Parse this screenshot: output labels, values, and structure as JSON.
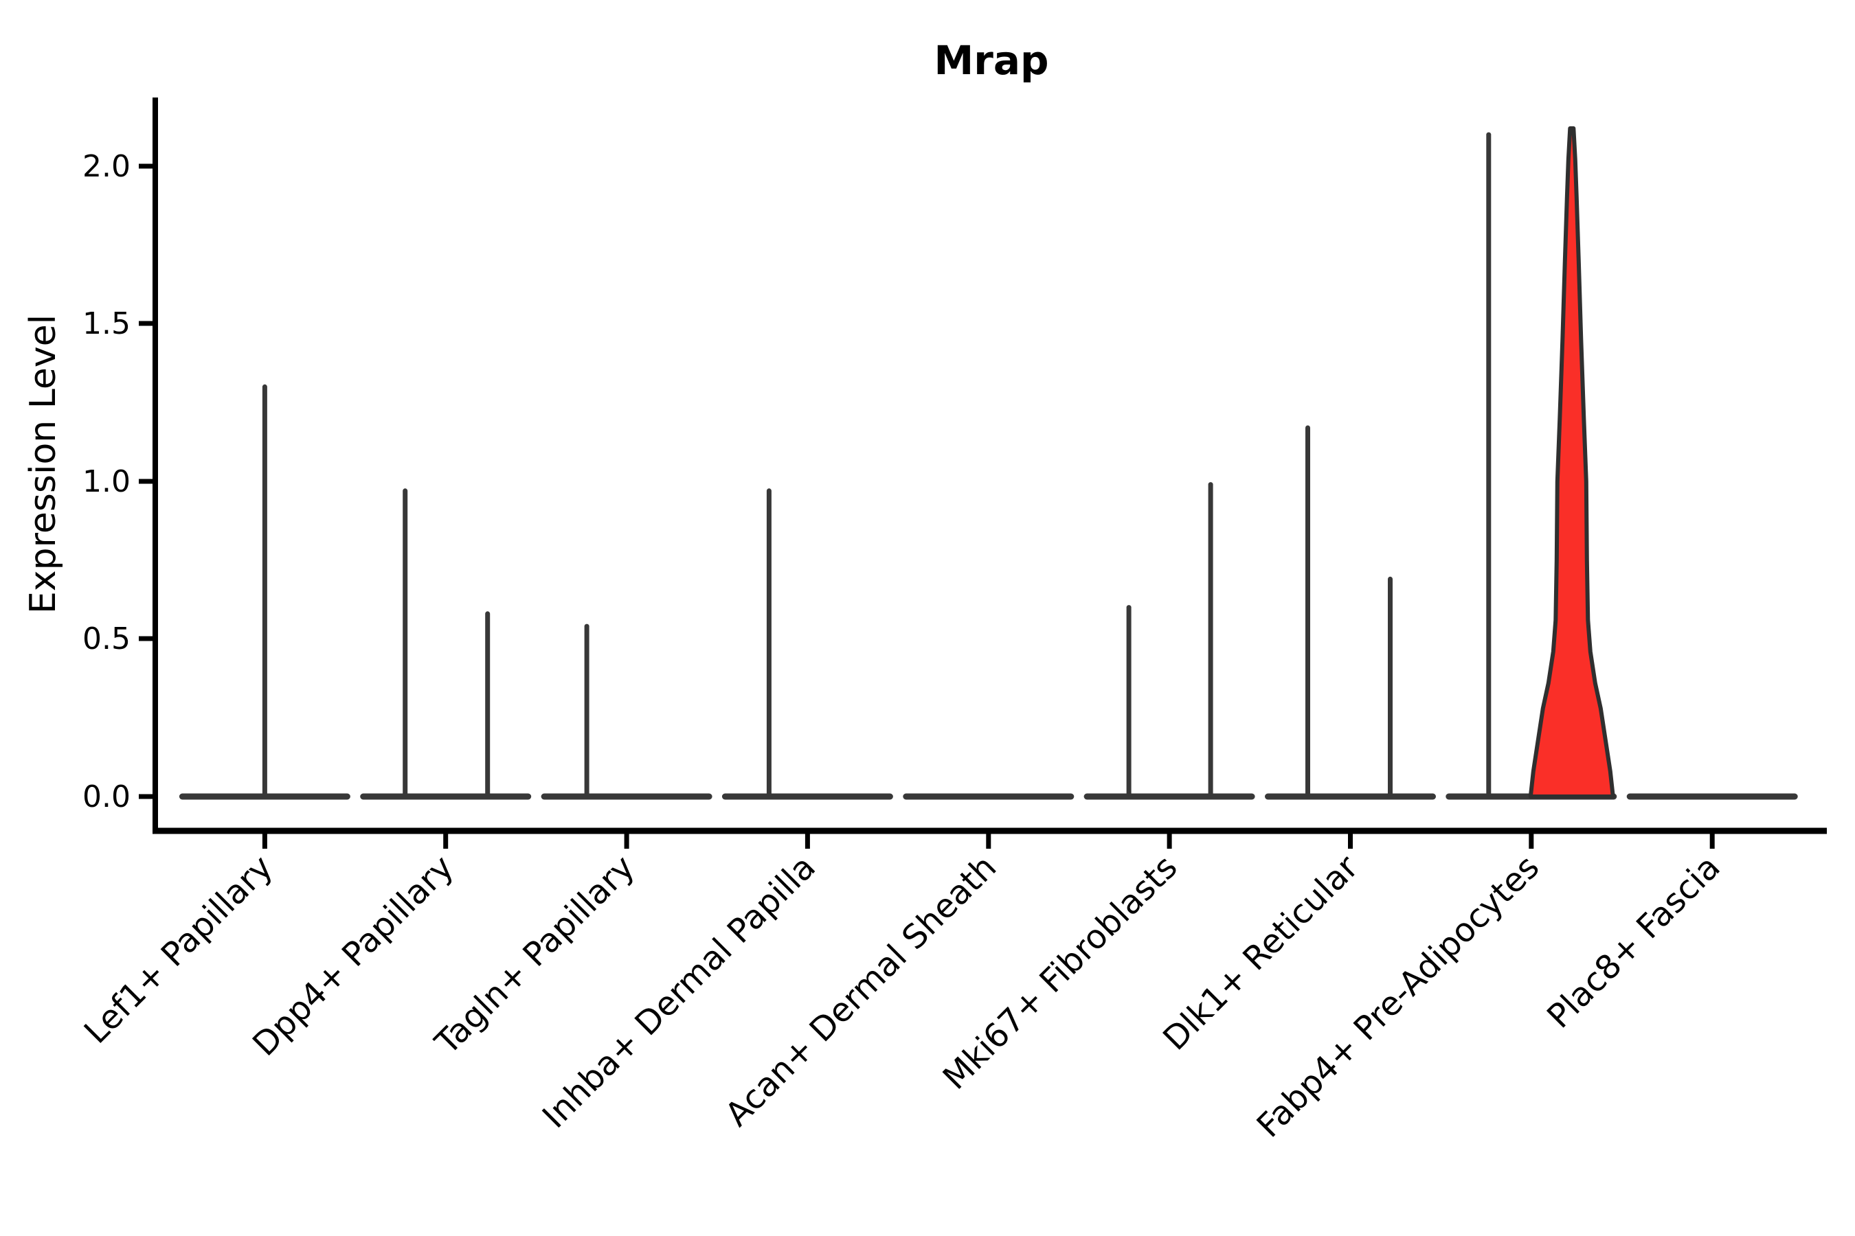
{
  "chart_data": {
    "type": "violin",
    "title": "Mrap",
    "xlabel": "",
    "ylabel": "Expression Level",
    "ylim": [
      0,
      2.2
    ],
    "grid": false,
    "legend": false,
    "yticks": [
      {
        "value": 0.0,
        "label": "0.0"
      },
      {
        "value": 0.5,
        "label": "0.5"
      },
      {
        "value": 1.0,
        "label": "1.0"
      },
      {
        "value": 1.5,
        "label": "1.5"
      },
      {
        "value": 2.0,
        "label": "2.0"
      }
    ],
    "axis_color": "#000000",
    "line_color": "#383838",
    "violin_outline_color": "#2f2f2f",
    "highlight_color": "#fa2f28",
    "categories": [
      {
        "label": "Lef1+ Papillary",
        "violins": [
          {
            "position": "center",
            "offset": 0,
            "max_expression": 1.3
          }
        ]
      },
      {
        "label": "Dpp4+ Papillary",
        "violins": [
          {
            "position": "left",
            "offset": -59,
            "max_expression": 0.97
          },
          {
            "position": "right",
            "offset": 61,
            "max_expression": 0.58
          }
        ]
      },
      {
        "label": "Tagln+ Papillary",
        "violins": [
          {
            "position": "left",
            "offset": -58,
            "max_expression": 0.54
          }
        ]
      },
      {
        "label": "Inhba+ Dermal Papilla",
        "violins": [
          {
            "position": "left",
            "offset": -56,
            "max_expression": 0.97
          }
        ]
      },
      {
        "label": "Acan+ Dermal Sheath",
        "violins": []
      },
      {
        "label": "Mki67+ Fibroblasts",
        "violins": [
          {
            "position": "left",
            "offset": -59,
            "max_expression": 0.6
          },
          {
            "position": "right",
            "offset": 60,
            "max_expression": 0.99
          }
        ]
      },
      {
        "label": "Dlk1+ Reticular",
        "violins": [
          {
            "position": "left",
            "offset": -62,
            "max_expression": 1.17
          },
          {
            "position": "right",
            "offset": 58,
            "max_expression": 0.69
          }
        ]
      },
      {
        "label": "Fabp4+ Pre-Adipocytes",
        "violins": [
          {
            "position": "left",
            "offset": -62,
            "max_expression": 2.1
          },
          {
            "position": "right",
            "offset": 59,
            "max_expression": 2.12,
            "highlighted": true
          }
        ]
      },
      {
        "label": "Plac8+ Fascia",
        "violins": []
      }
    ],
    "highlighted_category": "Fabp4+ Pre-Adipocytes",
    "highlight_profile": [
      [
        0.0,
        60.0
      ],
      [
        0.08,
        56.0
      ],
      [
        0.18,
        49.0
      ],
      [
        0.28,
        42.0
      ],
      [
        0.36,
        34.0
      ],
      [
        0.46,
        27.0
      ],
      [
        0.56,
        23.5
      ],
      [
        0.75,
        22.0
      ],
      [
        1.0,
        21.0
      ],
      [
        1.2,
        17.5
      ],
      [
        1.45,
        13.5
      ],
      [
        1.7,
        10.0
      ],
      [
        1.9,
        7.0
      ],
      [
        2.02,
        5.0
      ],
      [
        2.12,
        2.5
      ]
    ]
  }
}
